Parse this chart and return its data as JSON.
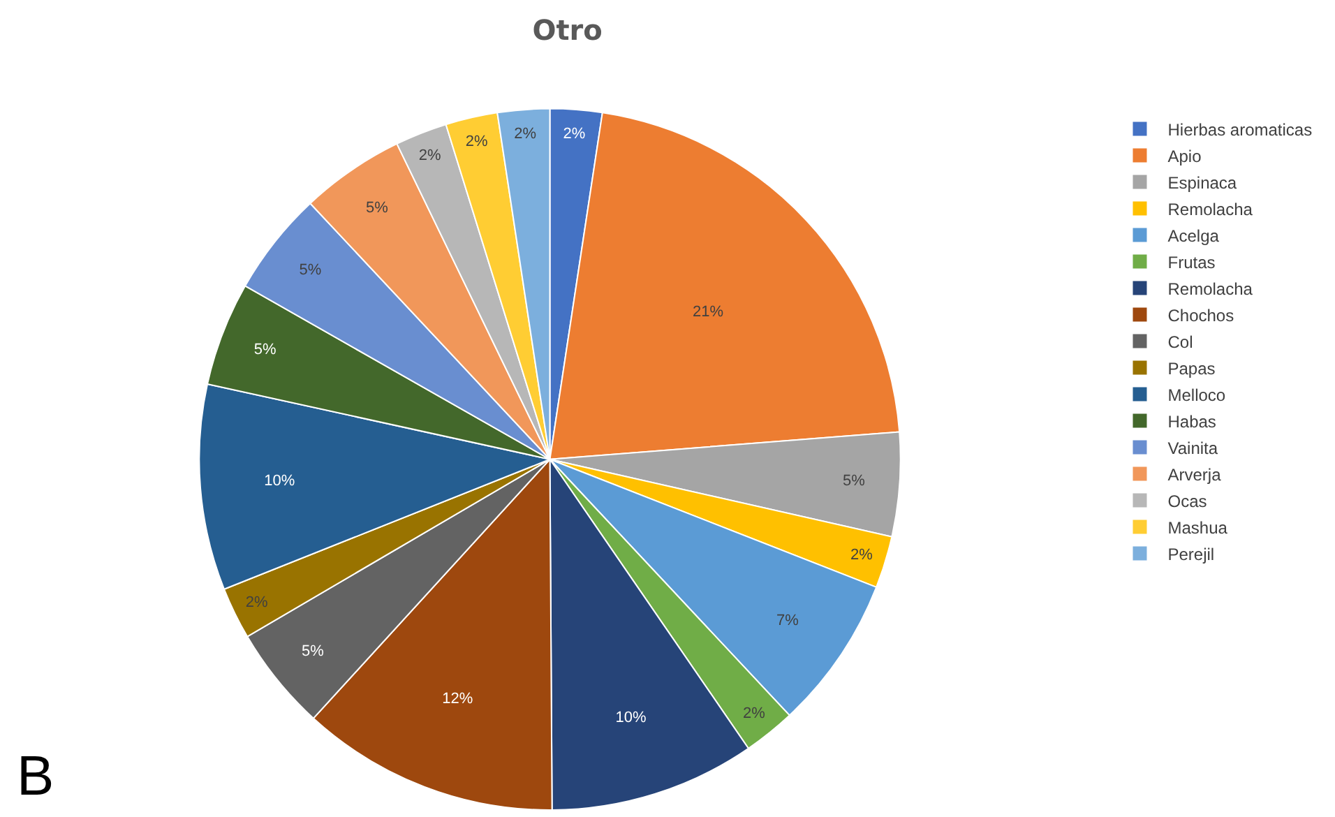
{
  "chart_data": {
    "type": "pie",
    "title": "Otro",
    "categories": [
      "Hierbas aromaticas",
      "Apio",
      "Espinaca",
      "Remolacha",
      "Acelga",
      "Frutas",
      "Remolacha",
      "Chochos",
      "Col",
      "Papas",
      "Melloco",
      "Habas",
      "Vainita",
      "Arverja",
      "Ocas",
      "Mashua",
      "Perejil"
    ],
    "values": [
      2.4,
      21.4,
      4.8,
      2.4,
      7.1,
      2.4,
      9.5,
      11.9,
      4.8,
      2.4,
      9.5,
      4.8,
      4.8,
      4.8,
      2.4,
      2.4,
      2.4
    ],
    "value_labels": [
      "2%",
      "21%",
      "5%",
      "2%",
      "7%",
      "2%",
      "10%",
      "12%",
      "5%",
      "2%",
      "10%",
      "5%",
      "5%",
      "5%",
      "2%",
      "2%",
      "2%"
    ],
    "colors": [
      "#4472c4",
      "#ed7d31",
      "#a5a5a5",
      "#ffc000",
      "#5b9bd5",
      "#70ad47",
      "#264478",
      "#9e480e",
      "#636363",
      "#997300",
      "#255e91",
      "#43682b",
      "#698ed0",
      "#f1975a",
      "#b7b7b7",
      "#ffcd33",
      "#7cafdd"
    ],
    "legend": "right",
    "annotations": [
      "B"
    ]
  }
}
